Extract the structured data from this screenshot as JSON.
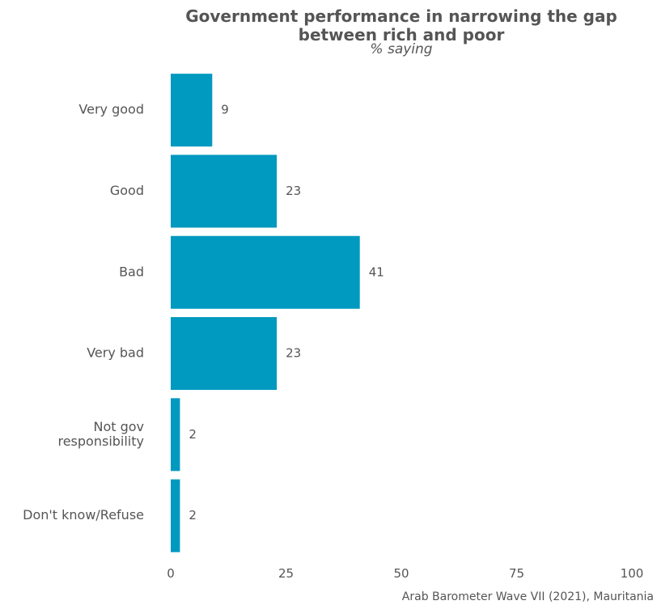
{
  "chart_data": {
    "type": "bar",
    "orientation": "horizontal",
    "title_lines": [
      "Government performance in narrowing the gap",
      "between rich and poor"
    ],
    "subtitle": "% saying",
    "caption": "Arab Barometer Wave VII (2021), Mauritania",
    "categories": [
      [
        "Very good"
      ],
      [
        "Good"
      ],
      [
        "Bad"
      ],
      [
        "Very bad"
      ],
      [
        "Not gov",
        "responsibility"
      ],
      [
        "Don't know/Refuse"
      ]
    ],
    "values": [
      9,
      23,
      41,
      23,
      2,
      2
    ],
    "value_labels": [
      "9",
      "23",
      "41",
      "23",
      "2",
      "2"
    ],
    "xlim": [
      0,
      100
    ],
    "xticks": [
      0,
      25,
      50,
      75,
      100
    ],
    "xtick_labels": [
      "0",
      "25",
      "50",
      "75",
      "100"
    ],
    "bar_color": "#0099BF",
    "grid": false,
    "legend": "none"
  }
}
